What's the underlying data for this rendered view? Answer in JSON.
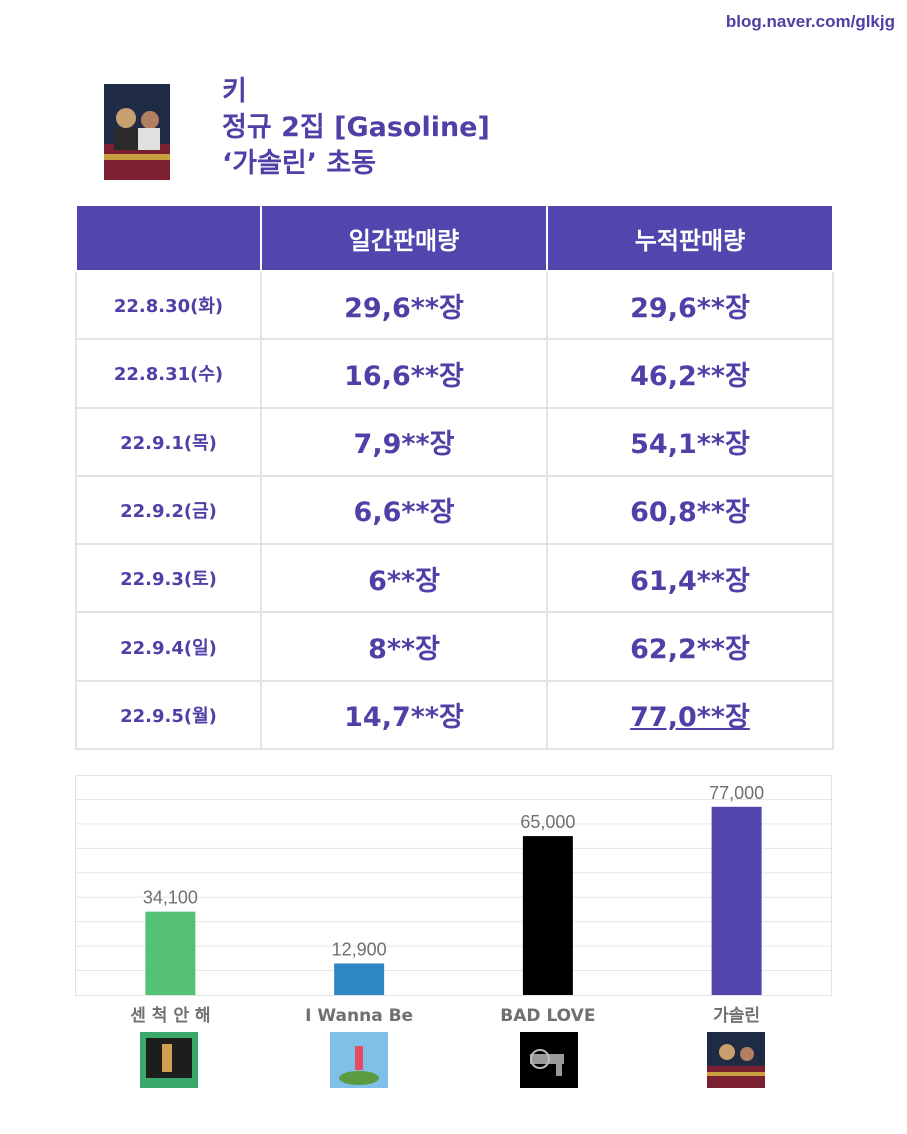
{
  "watermark": "blog.naver.com/glkjg",
  "title": {
    "line1": "키",
    "line2": "정규 2집 [Gasoline]",
    "line3": "‘가솔린’ 초동"
  },
  "table": {
    "headers": [
      "",
      "일간판매량",
      "누적판매량"
    ],
    "rows": [
      {
        "date": "22.8.30(화)",
        "daily": "29,6**장",
        "cumulative": "29,6**장"
      },
      {
        "date": "22.8.31(수)",
        "daily": "16,6**장",
        "cumulative": "46,2**장"
      },
      {
        "date": "22.9.1(목)",
        "daily": "7,9**장",
        "cumulative": "54,1**장"
      },
      {
        "date": "22.9.2(금)",
        "daily": "6,6**장",
        "cumulative": "60,8**장"
      },
      {
        "date": "22.9.3(토)",
        "daily": "6**장",
        "cumulative": "61,4**장"
      },
      {
        "date": "22.9.4(일)",
        "daily": "8**장",
        "cumulative": "62,2**장"
      },
      {
        "date": "22.9.5(월)",
        "daily": "14,7**장",
        "cumulative": "77,0**장"
      }
    ]
  },
  "chart_data": {
    "type": "bar",
    "categories": [
      "센 척 안 해",
      "I Wanna Be",
      "BAD LOVE",
      "가솔린"
    ],
    "values": [
      34100,
      12900,
      65000,
      77000
    ],
    "value_labels": [
      "34,100",
      "12,900",
      "65,000",
      "77,000"
    ],
    "colors": [
      "#55c174",
      "#2e86c5",
      "#000000",
      "#5246ad"
    ],
    "ylim": [
      0,
      90000
    ],
    "grid": true,
    "title": "",
    "xlabel": "",
    "ylabel": ""
  },
  "covers": [
    {
      "name": "gasoline-cover",
      "colors": [
        "#7a2030",
        "#1f2a44",
        "#c8a040"
      ]
    },
    {
      "name": "sen-cheok-cover",
      "colors": [
        "#3aa86a",
        "#1d1d1d",
        "#d0a050"
      ]
    },
    {
      "name": "i-wanna-be-cover",
      "colors": [
        "#7fc0e8",
        "#e84a5f",
        "#5a9a40"
      ]
    },
    {
      "name": "bad-love-cover",
      "colors": [
        "#000000",
        "#9a9a9a",
        "#000000"
      ]
    }
  ]
}
